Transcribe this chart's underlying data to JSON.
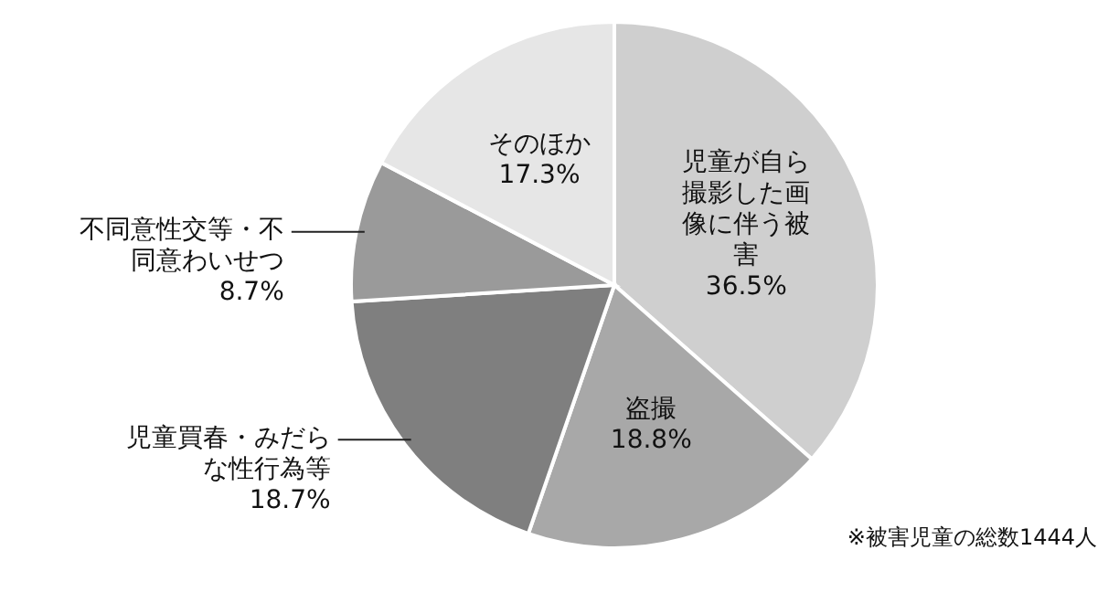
{
  "chart_data": {
    "type": "pie",
    "categories": [
      "児童が自ら撮影した画像に伴う被害",
      "盗撮",
      "児童買春・みだらな性行為等",
      "不同意性交等・不同意わいせつ",
      "そのほか"
    ],
    "values": [
      36.5,
      18.8,
      18.7,
      8.7,
      17.3
    ],
    "value_labels": [
      "36.5%",
      "18.8%",
      "18.7%",
      "8.7%",
      "17.3%"
    ],
    "colors": [
      "#cfcfcf",
      "#a8a8a8",
      "#7f7f7f",
      "#9a9a9a",
      "#e6e6e6"
    ],
    "annotations": [
      "※被害児童の総数1444人"
    ]
  }
}
